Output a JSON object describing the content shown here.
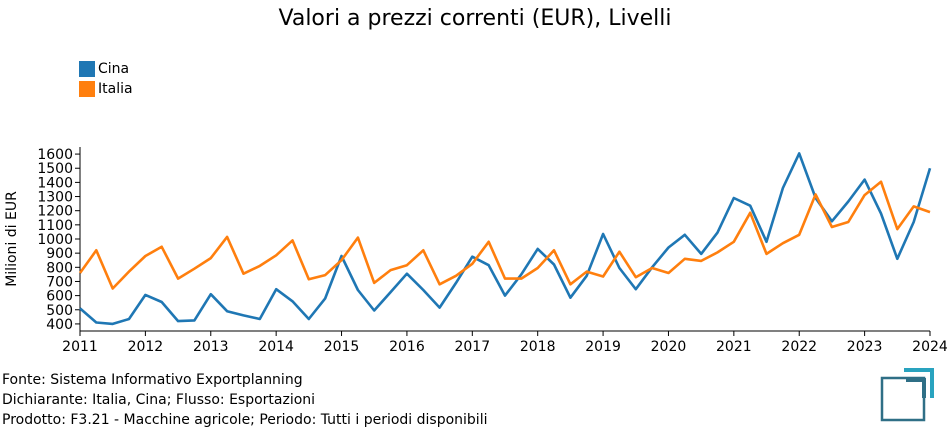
{
  "chart_data": {
    "type": "line",
    "title": "Valori a prezzi correnti (EUR), Livelli",
    "xlabel": "",
    "ylabel": "Milioni di EUR",
    "xlim": [
      2011,
      2024
    ],
    "ylim": [
      350,
      1650
    ],
    "yticks": [
      400,
      500,
      600,
      700,
      800,
      900,
      1000,
      1100,
      1200,
      1300,
      1400,
      1500,
      1600
    ],
    "xticks": [
      2011,
      2012,
      2013,
      2014,
      2015,
      2016,
      2017,
      2018,
      2019,
      2020,
      2021,
      2022,
      2023,
      2024
    ],
    "x": [
      2011,
      2011.25,
      2011.5,
      2011.75,
      2012,
      2012.25,
      2012.5,
      2012.75,
      2013,
      2013.25,
      2013.5,
      2013.75,
      2014,
      2014.25,
      2014.5,
      2014.75,
      2015,
      2015.25,
      2015.5,
      2015.75,
      2016,
      2016.25,
      2016.5,
      2016.75,
      2017,
      2017.25,
      2017.5,
      2017.75,
      2018,
      2018.25,
      2018.5,
      2018.75,
      2019,
      2019.25,
      2019.5,
      2019.75,
      2020,
      2020.25,
      2020.5,
      2020.75,
      2021,
      2021.25,
      2021.5,
      2021.75,
      2022,
      2022.25,
      2022.5,
      2022.75,
      2023,
      2023.25,
      2023.5,
      2023.75,
      2024
    ],
    "series": [
      {
        "name": "Cina",
        "color": "#1f77b4",
        "values": [
          510,
          410,
          400,
          435,
          605,
          555,
          420,
          425,
          610,
          490,
          460,
          435,
          645,
          560,
          435,
          580,
          880,
          640,
          495,
          625,
          755,
          640,
          515,
          690,
          875,
          815,
          600,
          750,
          930,
          820,
          585,
          740,
          1035,
          795,
          645,
          800,
          940,
          1030,
          895,
          1045,
          1290,
          1235,
          980,
          1360,
          1605,
          1290,
          1125,
          1265,
          1420,
          1180,
          860,
          1120,
          1500
        ]
      },
      {
        "name": "Italia",
        "color": "#ff7f0e",
        "values": [
          760,
          920,
          650,
          770,
          880,
          945,
          720,
          790,
          865,
          1015,
          755,
          810,
          885,
          990,
          715,
          745,
          850,
          1010,
          690,
          780,
          815,
          920,
          680,
          740,
          825,
          980,
          720,
          720,
          795,
          920,
          680,
          770,
          735,
          910,
          730,
          795,
          760,
          860,
          845,
          905,
          980,
          1185,
          895,
          970,
          1030,
          1315,
          1085,
          1120,
          1310,
          1405,
          1070,
          1230,
          1190
        ]
      }
    ]
  },
  "footer": {
    "source": "Fonte: Sistema Informativo Exportplanning",
    "declarant": "Dichiarante: Italia, Cina; Flusso: Esportazioni",
    "product": "Prodotto: F3.21 - Macchine agricole; Periodo: Tutti i periodi disponibili"
  },
  "logo_color": "#2f6f86",
  "logo_accent": "#29a3bf"
}
